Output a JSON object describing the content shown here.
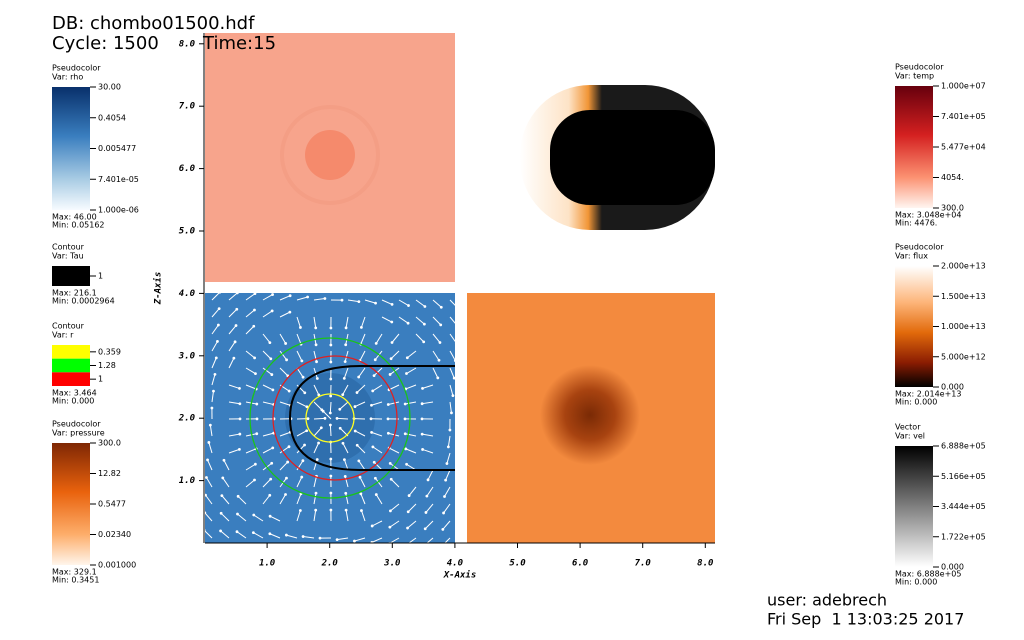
{
  "header": {
    "db": "DB: chombo01500.hdf",
    "cycle": "Cycle: 1500",
    "time": "Time:15"
  },
  "axes": {
    "x": {
      "label": "X-Axis",
      "ticks": [
        "1.0",
        "2.0",
        "3.0",
        "4.0",
        "5.0",
        "6.0",
        "7.0",
        "8.0"
      ]
    },
    "z": {
      "label": "Z-Axis",
      "ticks": [
        "1.0",
        "2.0",
        "3.0",
        "4.0",
        "5.0",
        "6.0",
        "7.0",
        "8.0"
      ]
    }
  },
  "legends": [
    {
      "plot": "Pseudocolor",
      "var": "Var: rho",
      "labels": [
        "30.00",
        "0.4054",
        "0.005477",
        "7.401e-05",
        "1.000e-06"
      ],
      "max": "Max: 46.00",
      "min": "Min: 0.05162"
    },
    {
      "plot": "Contour",
      "var": "Var: Tau",
      "labels": [
        "1"
      ],
      "max": "Max: 216.1",
      "min": "Min: 0.0002964"
    },
    {
      "plot": "Contour",
      "var": "Var: r",
      "labels": [
        "0.359",
        "1.28",
        "1"
      ],
      "max": "Max: 3.464",
      "min": "Min: 0.000"
    },
    {
      "plot": "Pseudocolor",
      "var": "Var: pressure",
      "labels": [
        "300.0",
        "12.82",
        "0.5477",
        "0.02340",
        "0.001000"
      ],
      "max": "Max: 329.1",
      "min": "Min: 0.3451"
    },
    {
      "plot": "Pseudocolor",
      "var": "Var: temp",
      "labels": [
        "1.000e+07",
        "7.401e+05",
        "5.477e+04",
        "4054.",
        "300.0"
      ],
      "max": "Max: 3.048e+04",
      "min": "Min: 4476."
    },
    {
      "plot": "Pseudocolor",
      "var": "Var: flux",
      "labels": [
        "2.000e+13",
        "1.500e+13",
        "1.000e+13",
        "5.000e+12",
        "0.000"
      ],
      "max": "Max: 2.014e+13",
      "min": "Min: 0.000"
    },
    {
      "plot": "Vector",
      "var": "Var: vel",
      "labels": [
        "6.888e+05",
        "5.166e+05",
        "3.444e+05",
        "1.722e+05",
        "0.000"
      ],
      "max": "Max: 6.888e+05",
      "min": "Min: 0.000"
    }
  ],
  "footer": {
    "user": "user: adebrech",
    "date": "Fri Sep  1 13:03:25 2017"
  }
}
